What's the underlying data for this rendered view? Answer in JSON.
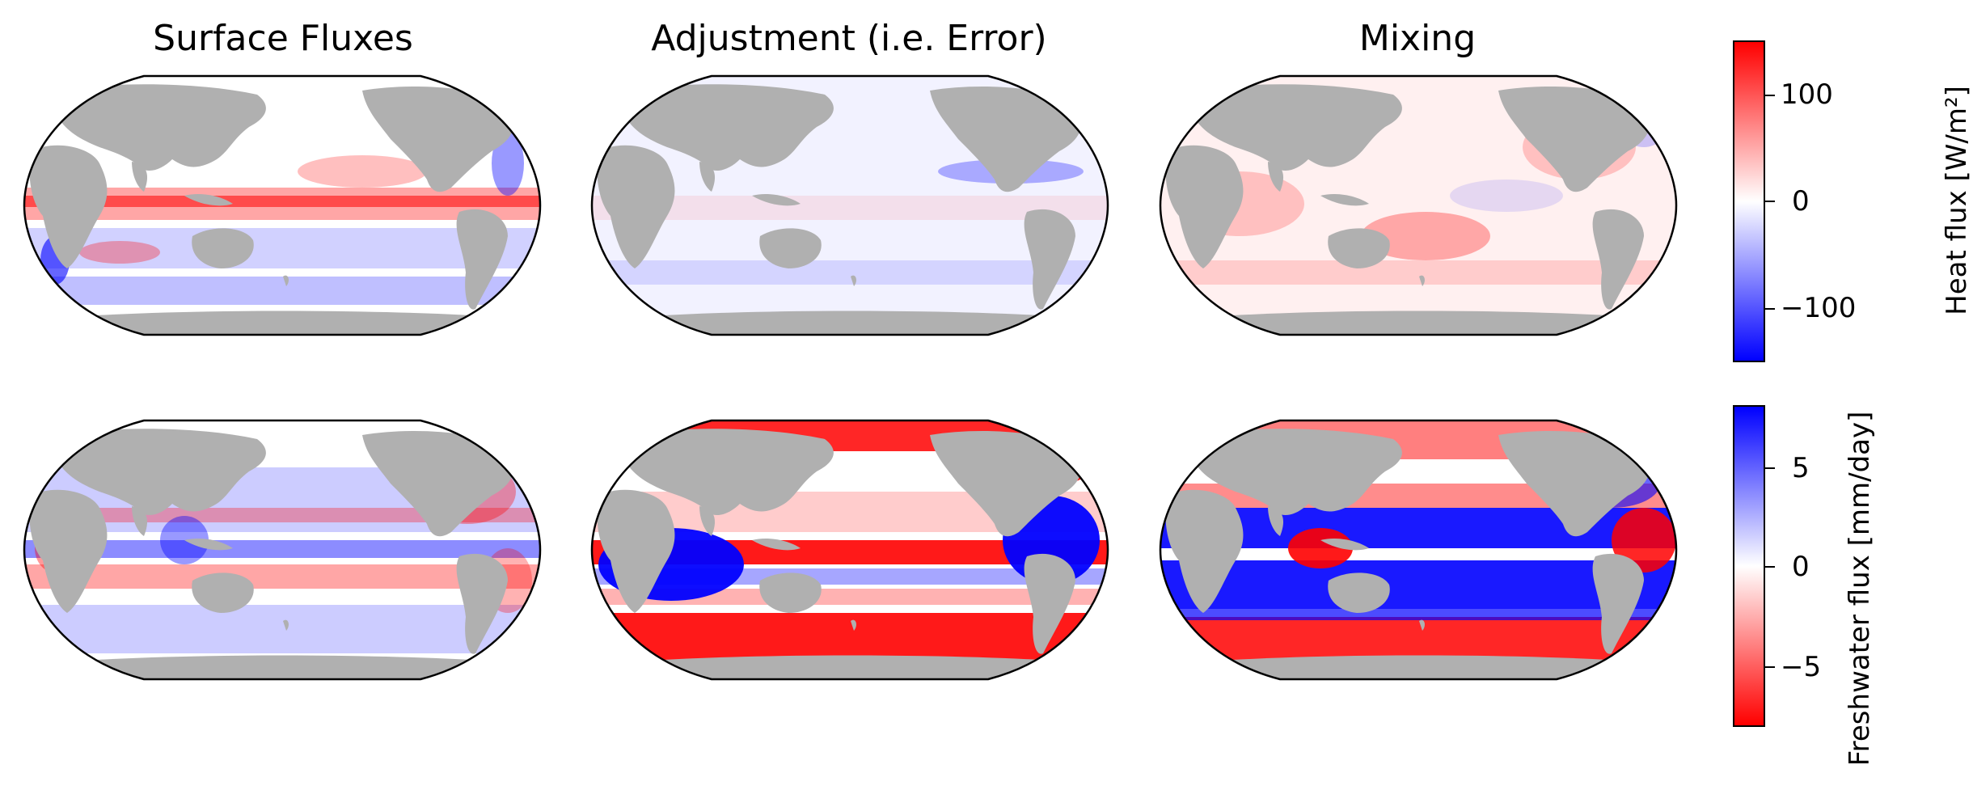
{
  "column_titles": [
    "Surface Fluxes",
    "Adjustment (i.e. Error)",
    "Mixing"
  ],
  "colors": {
    "land": "#b0b0b0",
    "ocean_neutral": "#ffffff",
    "positive": "#ff0000",
    "negative": "#0000ff"
  },
  "heat_colorbar": {
    "label": "Heat flux [W/m²]",
    "ticks": [
      "100",
      "0",
      "−100"
    ],
    "tick_values": [
      100,
      0,
      -100
    ],
    "range": [
      -140,
      140
    ],
    "colormap": "bwr (blue negative, red positive)"
  },
  "fw_colorbar": {
    "label": "Freshwater flux [mm/day]",
    "ticks": [
      "5",
      "0",
      "−5"
    ],
    "tick_values": [
      5,
      0,
      -5
    ],
    "range": [
      -8,
      8
    ],
    "colormap": "bwr_r (red negative, blue positive)"
  },
  "panels": [
    {
      "row": "heat",
      "col": "Surface Fluxes"
    },
    {
      "row": "heat",
      "col": "Adjustment (i.e. Error)"
    },
    {
      "row": "heat",
      "col": "Mixing"
    },
    {
      "row": "freshwater",
      "col": "Surface Fluxes"
    },
    {
      "row": "freshwater",
      "col": "Adjustment (i.e. Error)"
    },
    {
      "row": "freshwater",
      "col": "Mixing"
    }
  ]
}
